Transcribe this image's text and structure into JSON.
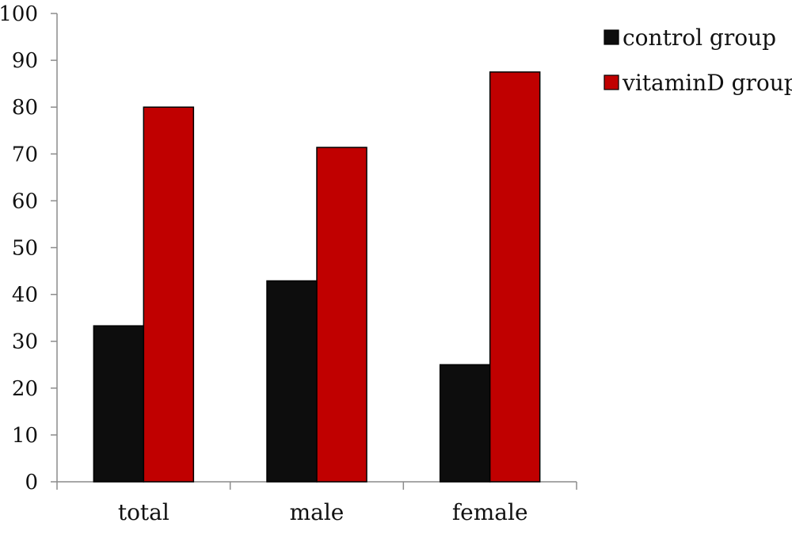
{
  "chart_data": {
    "type": "bar",
    "categories": [
      "total",
      "male",
      "female"
    ],
    "series": [
      {
        "name": "control group",
        "values": [
          33.3,
          42.9,
          25.0
        ],
        "color": "#0d0d0d"
      },
      {
        "name": "vitaminD group",
        "values": [
          80.0,
          71.4,
          87.5
        ],
        "color": "#c00000"
      }
    ],
    "ylim": [
      0,
      100
    ],
    "yticks": [
      0,
      10,
      20,
      30,
      40,
      50,
      60,
      70,
      80,
      90,
      100
    ],
    "grid": false,
    "legend_position": "top-right",
    "title": "",
    "xlabel": "",
    "ylabel": ""
  }
}
